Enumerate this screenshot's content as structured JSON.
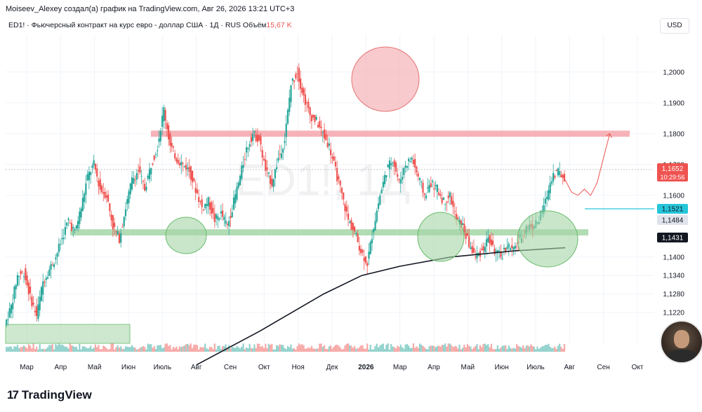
{
  "header": {
    "author_line": "Moiseev_Alexey создал(а) график на TradingView.com, Авг 26, 2026 13:21 UTC+3",
    "symbol_info": "ED1! · Фьючерсный контракт на курс евро - доллар США · 1Д · RUS",
    "volume_label": "Объём",
    "volume_value": "15,67 K",
    "currency": "USD"
  },
  "watermark": "ED1!, 1Д",
  "footer": {
    "brand": "TradingView",
    "logo_glyph": "17"
  },
  "price_tags": {
    "last": "1,1652",
    "countdown": "10:29:56",
    "level_cyan": "1,1521",
    "level_gray": "1,1484",
    "level_ma": "1,1431"
  },
  "colors": {
    "up": "#26a69a",
    "down": "#ef5350",
    "resistance_zone": "#f4a6ac",
    "support_zone": "#a5d6a7",
    "ma_line": "#131722",
    "cyan_level": "#26c6da"
  },
  "chart_data": {
    "type": "candlestick",
    "y_axis": {
      "ticks": [
        "1,2000",
        "1,1900",
        "1,1800",
        "1,1700",
        "1,1600",
        "1,1400",
        "1,1340",
        "1,1280",
        "1,1220"
      ],
      "range": [
        1.112,
        1.212
      ]
    },
    "x_axis": {
      "ticks": [
        "Мар",
        "Апр",
        "Май",
        "Июн",
        "Июль",
        "Авг",
        "Сен",
        "Окт",
        "Ноя",
        "Дек",
        "2026",
        "Мар",
        "Апр",
        "Май",
        "Июн",
        "Июль",
        "Авг",
        "Сен",
        "Окт"
      ]
    },
    "price_path": [
      [
        0,
        1.118
      ],
      [
        1,
        1.124
      ],
      [
        2,
        1.134
      ],
      [
        3,
        1.135
      ],
      [
        4,
        1.127
      ],
      [
        5,
        1.121
      ],
      [
        6,
        1.132
      ],
      [
        7,
        1.136
      ],
      [
        8,
        1.14
      ],
      [
        9,
        1.146
      ],
      [
        10,
        1.152
      ],
      [
        11,
        1.148
      ],
      [
        12,
        1.156
      ],
      [
        13,
        1.166
      ],
      [
        14,
        1.17
      ],
      [
        15,
        1.162
      ],
      [
        16,
        1.16
      ],
      [
        17,
        1.15
      ],
      [
        18,
        1.146
      ],
      [
        19,
        1.156
      ],
      [
        20,
        1.165
      ],
      [
        21,
        1.168
      ],
      [
        22,
        1.162
      ],
      [
        23,
        1.17
      ],
      [
        24,
        1.176
      ],
      [
        25,
        1.188
      ],
      [
        26,
        1.176
      ],
      [
        27,
        1.172
      ],
      [
        28,
        1.17
      ],
      [
        29,
        1.168
      ],
      [
        30,
        1.162
      ],
      [
        31,
        1.156
      ],
      [
        32,
        1.158
      ],
      [
        33,
        1.152
      ],
      [
        34,
        1.154
      ],
      [
        35,
        1.15
      ],
      [
        36,
        1.158
      ],
      [
        37,
        1.166
      ],
      [
        38,
        1.175
      ],
      [
        39,
        1.18
      ],
      [
        40,
        1.178
      ],
      [
        41,
        1.168
      ],
      [
        42,
        1.164
      ],
      [
        43,
        1.172
      ],
      [
        44,
        1.178
      ],
      [
        45,
        1.196
      ],
      [
        46,
        1.2
      ],
      [
        47,
        1.192
      ],
      [
        48,
        1.186
      ],
      [
        49,
        1.184
      ],
      [
        50,
        1.18
      ],
      [
        51,
        1.176
      ],
      [
        52,
        1.168
      ],
      [
        53,
        1.16
      ],
      [
        54,
        1.152
      ],
      [
        55,
        1.148
      ],
      [
        56,
        1.142
      ],
      [
        57,
        1.138
      ],
      [
        58,
        1.15
      ],
      [
        59,
        1.16
      ],
      [
        60,
        1.168
      ],
      [
        61,
        1.172
      ],
      [
        62,
        1.164
      ],
      [
        63,
        1.17
      ],
      [
        64,
        1.172
      ],
      [
        65,
        1.166
      ],
      [
        66,
        1.16
      ],
      [
        67,
        1.164
      ],
      [
        68,
        1.162
      ],
      [
        69,
        1.158
      ],
      [
        70,
        1.16
      ],
      [
        71,
        1.152
      ],
      [
        72,
        1.15
      ],
      [
        73,
        1.144
      ],
      [
        74,
        1.14
      ],
      [
        75,
        1.142
      ],
      [
        76,
        1.146
      ],
      [
        77,
        1.142
      ],
      [
        78,
        1.14
      ],
      [
        79,
        1.144
      ],
      [
        80,
        1.142
      ],
      [
        81,
        1.146
      ],
      [
        82,
        1.15
      ],
      [
        83,
        1.15
      ],
      [
        84,
        1.152
      ],
      [
        85,
        1.158
      ],
      [
        86,
        1.166
      ],
      [
        87,
        1.168
      ],
      [
        88,
        1.165
      ]
    ],
    "ma_line": [
      [
        30,
        1.105
      ],
      [
        40,
        1.116
      ],
      [
        50,
        1.128
      ],
      [
        56,
        1.134
      ],
      [
        62,
        1.137
      ],
      [
        70,
        1.14
      ],
      [
        80,
        1.142
      ],
      [
        88,
        1.143
      ]
    ],
    "forecast_path": [
      [
        88,
        1.165
      ],
      [
        89,
        1.161
      ],
      [
        90,
        1.16
      ],
      [
        91,
        1.162
      ],
      [
        92,
        1.16
      ],
      [
        93,
        1.164
      ],
      [
        94,
        1.172
      ],
      [
        95,
        1.18
      ]
    ],
    "zones": [
      {
        "kind": "resistance",
        "y_low": 1.179,
        "y_high": 1.181
      },
      {
        "kind": "support",
        "y_low": 1.147,
        "y_high": 1.149
      }
    ]
  }
}
